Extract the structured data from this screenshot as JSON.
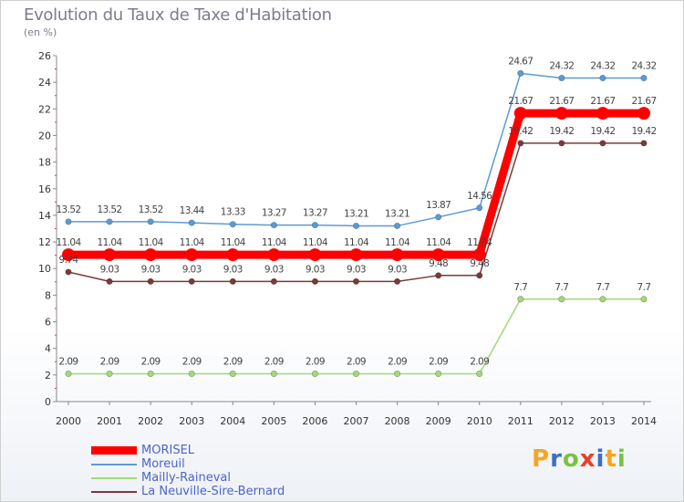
{
  "title": "Evolution du Taux de Taxe d'Habitation",
  "unit": "(en %)",
  "brand": {
    "letters": [
      "P",
      "r",
      "o",
      "x",
      "i",
      "t",
      "i"
    ],
    "colors": [
      "#f5a623",
      "#3a6fc9",
      "#7bc143",
      "#e8402a",
      "#3a6fc9",
      "#f5a623",
      "#7bc143"
    ]
  },
  "chart_data": {
    "type": "line",
    "title": "Evolution du Taux de Taxe d'Habitation",
    "ylabel": "(en %)",
    "xlabel": "",
    "ylim": [
      0,
      26
    ],
    "yticks": [
      0,
      2,
      4,
      6,
      8,
      10,
      12,
      14,
      16,
      18,
      20,
      22,
      24,
      26
    ],
    "grid": false,
    "legend_position": "bottom-left",
    "categories": [
      "2000",
      "2001",
      "2002",
      "2003",
      "2004",
      "2005",
      "2006",
      "2007",
      "2008",
      "2009",
      "2010",
      "2011",
      "2012",
      "2013",
      "2014"
    ],
    "series": [
      {
        "name": "MORISEL",
        "color": "#ff0000",
        "values": [
          11.04,
          11.04,
          11.04,
          11.04,
          11.04,
          11.04,
          11.04,
          11.04,
          11.04,
          11.04,
          11.04,
          21.67,
          21.67,
          21.67,
          21.67
        ],
        "labels": [
          "11.04",
          "11.04",
          "11.04",
          "11.04",
          "11.04",
          "11.04",
          "11.04",
          "11.04",
          "11.04",
          "11.04",
          "11.04",
          "21.67",
          "21.67",
          "21.67",
          "21.67"
        ]
      },
      {
        "name": "Moreuil",
        "color": "#5b9bd5",
        "values": [
          13.52,
          13.52,
          13.52,
          13.44,
          13.33,
          13.27,
          13.27,
          13.21,
          13.21,
          13.87,
          14.56,
          24.67,
          24.32,
          24.32,
          24.32
        ],
        "labels": [
          "13.52",
          "13.52",
          "13.52",
          "13.44",
          "13.33",
          "13.27",
          "13.27",
          "13.21",
          "13.21",
          "13.87",
          "14.56",
          "24.67",
          "24.32",
          "24.32",
          "24.32"
        ]
      },
      {
        "name": "Mailly-Raineval",
        "color": "#a3d977",
        "values": [
          2.09,
          2.09,
          2.09,
          2.09,
          2.09,
          2.09,
          2.09,
          2.09,
          2.09,
          2.09,
          2.09,
          7.7,
          7.7,
          7.7,
          7.7
        ],
        "labels": [
          "2.09",
          "2.09",
          "2.09",
          "2.09",
          "2.09",
          "2.09",
          "2.09",
          "2.09",
          "2.09",
          "2.09",
          "2.09",
          "7.7",
          "7.7",
          "7.7",
          "7.7"
        ]
      },
      {
        "name": "La Neuville-Sire-Bernard",
        "color": "#7a3a3a",
        "values": [
          9.74,
          9.03,
          9.03,
          9.03,
          9.03,
          9.03,
          9.03,
          9.03,
          9.03,
          9.48,
          9.48,
          19.42,
          19.42,
          19.42,
          19.42
        ],
        "labels": [
          "9.74",
          "9.03",
          "9.03",
          "9.03",
          "9.03",
          "9.03",
          "9.03",
          "9.03",
          "9.03",
          "9.48",
          "9.48",
          "19.42",
          "19.42",
          "19.42",
          "19.42"
        ]
      }
    ]
  }
}
